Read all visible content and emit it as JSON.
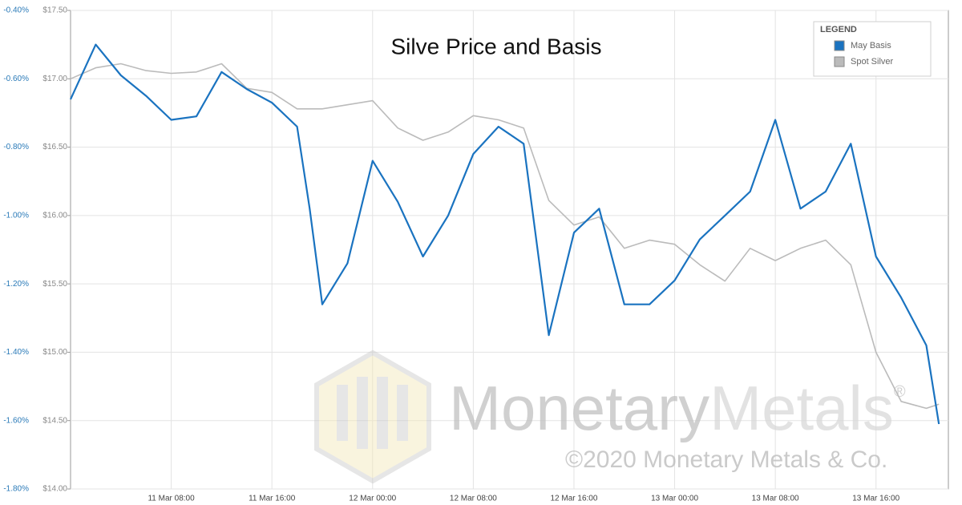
{
  "chart_data": {
    "type": "line",
    "title": "Silve Price and Basis",
    "x": [
      "11 Mar 00:00",
      "11 Mar 02:00",
      "11 Mar 04:00",
      "11 Mar 06:00",
      "11 Mar 08:00",
      "11 Mar 10:00",
      "11 Mar 12:00",
      "11 Mar 14:00",
      "11 Mar 16:00",
      "11 Mar 18:00",
      "11 Mar 19:00",
      "11 Mar 20:00",
      "11 Mar 22:00",
      "12 Mar 00:00",
      "12 Mar 02:00",
      "12 Mar 04:00",
      "12 Mar 06:00",
      "12 Mar 08:00",
      "12 Mar 10:00",
      "12 Mar 12:00",
      "12 Mar 14:00",
      "12 Mar 16:00",
      "12 Mar 18:00",
      "12 Mar 20:00",
      "12 Mar 22:00",
      "13 Mar 00:00",
      "13 Mar 02:00",
      "13 Mar 04:00",
      "13 Mar 06:00",
      "13 Mar 08:00",
      "13 Mar 10:00",
      "13 Mar 12:00",
      "13 Mar 14:00",
      "13 Mar 16:00",
      "13 Mar 18:00",
      "13 Mar 20:00",
      "13 Mar 21:00"
    ],
    "xlim": [
      "11 Mar 00:00",
      "13 Mar 21:45"
    ],
    "xticks": [
      "11 Mar 08:00",
      "11 Mar 16:00",
      "12 Mar 00:00",
      "12 Mar 08:00",
      "12 Mar 16:00",
      "13 Mar 00:00",
      "13 Mar 08:00",
      "13 Mar 16:00"
    ],
    "series": [
      {
        "name": "May Basis",
        "color": "#1a73c0",
        "values": [
          -0.66,
          -0.5,
          -0.59,
          -0.65,
          -0.72,
          -0.71,
          -0.58,
          -0.63,
          -0.67,
          -0.74,
          -0.98,
          -1.26,
          -1.14,
          -0.84,
          -0.96,
          -1.12,
          -1.0,
          -0.82,
          -0.74,
          -0.79,
          -1.35,
          -1.05,
          -0.98,
          -1.26,
          -1.26,
          -1.19,
          -1.07,
          -1.0,
          -0.93,
          -0.72,
          -0.98,
          -0.93,
          -0.79,
          -1.12,
          -1.24,
          -1.38,
          -1.61
        ]
      },
      {
        "name": "Spot Silver",
        "color": "#bbbbbb",
        "axis": "y2",
        "values": [
          17.0,
          17.08,
          17.11,
          17.06,
          17.04,
          17.05,
          17.11,
          16.93,
          16.9,
          16.78,
          16.78,
          16.78,
          16.81,
          16.84,
          16.64,
          16.55,
          16.61,
          16.73,
          16.7,
          16.64,
          16.11,
          15.93,
          15.99,
          15.76,
          15.82,
          15.79,
          15.64,
          15.52,
          15.76,
          15.67,
          15.76,
          15.82,
          15.64,
          15.0,
          14.64,
          14.59,
          14.62
        ]
      }
    ],
    "ylim": [
      -1.8,
      -0.4
    ],
    "yticks": [
      {
        "value": -0.4,
        "label": "-0.40%"
      },
      {
        "value": -0.6,
        "label": "-0.60%"
      },
      {
        "value": -0.8,
        "label": "-0.80%"
      },
      {
        "value": -1.0,
        "label": "-1.00%"
      },
      {
        "value": -1.2,
        "label": "-1.20%"
      },
      {
        "value": -1.4,
        "label": "-1.40%"
      },
      {
        "value": -1.6,
        "label": "-1.60%"
      },
      {
        "value": -1.8,
        "label": "-1.80%"
      }
    ],
    "y2lim": [
      14.0,
      17.5
    ],
    "y2ticks": [
      {
        "value": 17.5,
        "label": "$17.50"
      },
      {
        "value": 17.0,
        "label": "$17.00"
      },
      {
        "value": 16.5,
        "label": "$16.50"
      },
      {
        "value": 16.0,
        "label": "$16.00"
      },
      {
        "value": 15.5,
        "label": "$15.50"
      },
      {
        "value": 15.0,
        "label": "$15.00"
      },
      {
        "value": 14.5,
        "label": "$14.50"
      },
      {
        "value": 14.0,
        "label": "$14.00"
      }
    ],
    "grid": true,
    "legend": {
      "title": "LEGEND",
      "position": "top-right"
    },
    "watermark": {
      "brand_first": "Monetary",
      "brand_second": "Metals",
      "registered": "®",
      "copyright": "©2020 Monetary Metals & Co."
    }
  }
}
